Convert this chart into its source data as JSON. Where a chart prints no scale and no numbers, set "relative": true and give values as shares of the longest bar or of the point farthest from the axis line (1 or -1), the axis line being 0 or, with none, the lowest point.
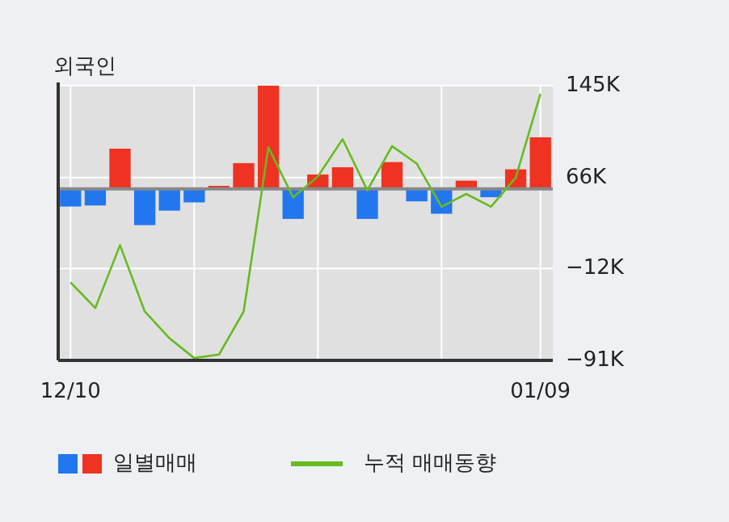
{
  "chart_data": [
    {
      "type": "bar",
      "title": "외국인",
      "relative": true,
      "categories": [
        "12/10",
        null,
        null,
        null,
        null,
        null,
        null,
        null,
        null,
        null,
        null,
        null,
        null,
        null,
        null,
        null,
        null,
        null,
        null,
        "01/09"
      ],
      "series": [
        {
          "name": "일별매매",
          "colors": [
            "#2277ee",
            "#2277ee",
            "#ee3322",
            "#2277ee",
            "#2277ee",
            "#2277ee",
            "#ee3322",
            "#ee3322",
            "#ee3322",
            "#2277ee",
            "#ee3322",
            "#ee3322",
            "#2277ee",
            "#ee3322",
            "#2277ee",
            "#2277ee",
            "#ee3322",
            "#2277ee",
            "#ee3322",
            "#ee3322"
          ],
          "values": [
            -0.17,
            -0.16,
            0.39,
            -0.35,
            -0.21,
            -0.13,
            0.03,
            0.25,
            1.0,
            -0.29,
            0.14,
            0.21,
            -0.29,
            0.26,
            -0.12,
            -0.24,
            0.08,
            -0.08,
            0.19,
            0.5
          ]
        }
      ],
      "grid": "x",
      "legend": "bottom"
    },
    {
      "type": "line",
      "series": [
        {
          "name": "누적 매매동향",
          "color": "#66bb22",
          "values": [
            -24,
            -46,
            8,
            -49,
            -72,
            -89,
            -86,
            -49,
            92,
            49,
            67,
            99,
            55,
            93,
            78,
            41,
            52,
            41,
            66,
            138
          ]
        }
      ],
      "ylim": [
        -91,
        145
      ],
      "yticks": [
        {
          "value": 145,
          "label": "145K"
        },
        {
          "value": 66,
          "label": "66K"
        },
        {
          "value": -12,
          "label": "−12K"
        },
        {
          "value": -91,
          "label": "−91K"
        }
      ],
      "grid": "y",
      "legend": "bottom",
      "tick_labels": "y"
    }
  ]
}
